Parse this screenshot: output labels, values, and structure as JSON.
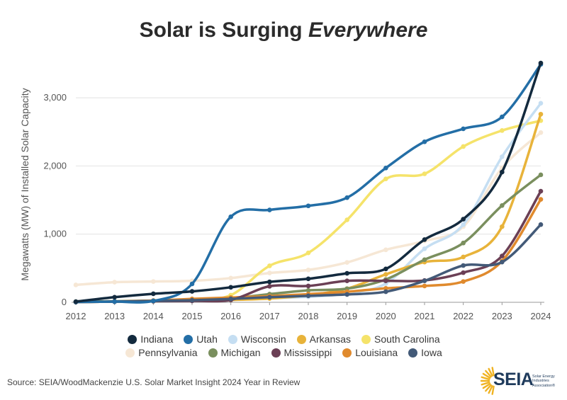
{
  "title": {
    "main": "Solar is Surging ",
    "emphasis": "Everywhere"
  },
  "source": "Source: SEIA/WoodMackenzie U.S. Solar Market Insight 2024 Year in Review",
  "logo": {
    "word": "SEIA",
    "tagline": "Solar Energy Industries Association®"
  },
  "chart_data": {
    "type": "line",
    "title": "Solar is Surging Everywhere",
    "ylabel": "Megawatts (MW) of Installed Solar Capacity",
    "xlabel": "",
    "x": [
      2012,
      2013,
      2014,
      2015,
      2016,
      2017,
      2018,
      2019,
      2020,
      2021,
      2022,
      2023,
      2024
    ],
    "x_tick_labels": [
      "2012",
      "2013",
      "2014",
      "2015",
      "2016",
      "2017",
      "2018",
      "2019",
      "2020",
      "2021",
      "2022",
      "2023",
      "2024"
    ],
    "y_ticks": [
      0,
      1000,
      2000,
      3000
    ],
    "y_tick_labels": [
      "0",
      "1,000",
      "2,000",
      "3,000"
    ],
    "ylim": [
      0,
      3500
    ],
    "grid": "horizontal",
    "legend_position": "bottom",
    "series": [
      {
        "name": "Indiana",
        "color": "#132a3e",
        "values": [
          10,
          75,
          125,
          160,
          220,
          300,
          345,
          425,
          490,
          920,
          1220,
          1910,
          3510
        ]
      },
      {
        "name": "Utah",
        "color": "#236ea6",
        "values": [
          5,
          10,
          20,
          270,
          1255,
          1355,
          1415,
          1535,
          1970,
          2355,
          2545,
          2720,
          3490
        ]
      },
      {
        "name": "Wisconsin",
        "color": "#c5def2",
        "values": [
          5,
          10,
          20,
          30,
          45,
          60,
          80,
          130,
          275,
          785,
          1140,
          2135,
          2920
        ]
      },
      {
        "name": "Arkansas",
        "color": "#e8b33a",
        "values": [
          5,
          10,
          15,
          25,
          35,
          55,
          105,
          200,
          410,
          590,
          665,
          1110,
          2760
        ]
      },
      {
        "name": "South Carolina",
        "color": "#f5e36a",
        "values": [
          5,
          10,
          20,
          35,
          105,
          535,
          725,
          1210,
          1810,
          1885,
          2285,
          2520,
          2665
        ]
      },
      {
        "name": "Pennsylvania",
        "color": "#f6e7d5",
        "values": [
          255,
          295,
          305,
          315,
          355,
          430,
          475,
          585,
          770,
          900,
          1110,
          1970,
          2490
        ]
      },
      {
        "name": "Michigan",
        "color": "#7a8f5e",
        "values": [
          10,
          15,
          25,
          40,
          60,
          120,
          175,
          200,
          335,
          625,
          870,
          1420,
          1870
        ]
      },
      {
        "name": "Mississippi",
        "color": "#6b3f55",
        "values": [
          5,
          10,
          15,
          20,
          35,
          235,
          240,
          315,
          315,
          320,
          435,
          680,
          1630
        ]
      },
      {
        "name": "Louisiana",
        "color": "#e08a2d",
        "values": [
          5,
          10,
          25,
          50,
          70,
          90,
          120,
          155,
          205,
          240,
          305,
          605,
          1510
        ]
      },
      {
        "name": "Iowa",
        "color": "#435a78",
        "values": [
          5,
          10,
          20,
          30,
          50,
          75,
          95,
          115,
          155,
          315,
          540,
          590,
          1140
        ]
      }
    ]
  }
}
